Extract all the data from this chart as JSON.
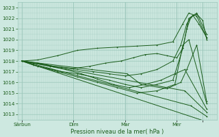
{
  "xlabel": "Pression niveau de la mer( hPa )",
  "ylim": [
    1012.5,
    1023.5
  ],
  "xlim": [
    0,
    100
  ],
  "yticks": [
    1013,
    1014,
    1015,
    1016,
    1017,
    1018,
    1019,
    1020,
    1021,
    1022,
    1023
  ],
  "xtick_positions": [
    2,
    28,
    54,
    80,
    93
  ],
  "xtick_labels": [
    "Sârbun",
    "Dim",
    "Mar",
    "Mer",
    ""
  ],
  "day_lines": [
    2,
    28,
    54,
    80,
    93
  ],
  "bg_color": "#cde8e0",
  "grid_color": "#9dc8bc",
  "line_color": "#1a5c1a",
  "lines": [
    {
      "x": [
        2,
        95
      ],
      "y": [
        1018.0,
        1012.3
      ]
    },
    {
      "x": [
        2,
        87,
        95
      ],
      "y": [
        1018.0,
        1013.8,
        1012.8
      ]
    },
    {
      "x": [
        2,
        84,
        95
      ],
      "y": [
        1018.0,
        1015.2,
        1013.2
      ]
    },
    {
      "x": [
        2,
        37,
        55,
        62,
        75,
        82,
        85,
        90,
        95
      ],
      "y": [
        1018.0,
        1017.2,
        1016.8,
        1015.8,
        1015.4,
        1016.0,
        1017.2,
        1019.5,
        1014.2
      ]
    },
    {
      "x": [
        2,
        10,
        18,
        28,
        36,
        44,
        52,
        58,
        64,
        70,
        75,
        80,
        83,
        85,
        87,
        90,
        93,
        95
      ],
      "y": [
        1018.0,
        1017.8,
        1017.5,
        1017.3,
        1017.5,
        1017.8,
        1018.0,
        1018.3,
        1018.6,
        1018.7,
        1018.5,
        1018.3,
        1019.2,
        1021.0,
        1022.1,
        1022.4,
        1021.8,
        1020.0
      ]
    },
    {
      "x": [
        2,
        8,
        15,
        22,
        30,
        38,
        46,
        54,
        62,
        70,
        78,
        82,
        85,
        88,
        91,
        95
      ],
      "y": [
        1018.0,
        1017.8,
        1017.6,
        1017.4,
        1017.2,
        1017.0,
        1016.8,
        1016.6,
        1016.8,
        1017.2,
        1018.0,
        1019.5,
        1021.5,
        1022.3,
        1021.5,
        1020.2
      ]
    },
    {
      "x": [
        2,
        8,
        15,
        22,
        30,
        38,
        46,
        54,
        62,
        70,
        78,
        83,
        86,
        90,
        95
      ],
      "y": [
        1018.0,
        1017.6,
        1017.3,
        1017.0,
        1016.8,
        1016.5,
        1016.2,
        1015.8,
        1015.5,
        1015.8,
        1016.2,
        1019.2,
        1022.0,
        1022.5,
        1020.5
      ]
    },
    {
      "x": [
        2,
        10,
        20,
        30,
        40,
        50,
        60,
        70,
        78,
        83,
        86,
        90,
        95
      ],
      "y": [
        1018.0,
        1018.1,
        1018.5,
        1019.0,
        1019.2,
        1019.3,
        1019.4,
        1019.5,
        1019.8,
        1021.5,
        1022.5,
        1022.2,
        1020.2
      ]
    },
    {
      "x": [
        2,
        8,
        16,
        24,
        32,
        40,
        48,
        56,
        64,
        72,
        79,
        84,
        95
      ],
      "y": [
        1018.0,
        1017.8,
        1017.5,
        1017.2,
        1016.8,
        1016.3,
        1015.8,
        1015.5,
        1015.8,
        1016.2,
        1016.8,
        1017.2,
        1013.5
      ]
    },
    {
      "x": [
        2,
        10,
        20,
        30,
        40,
        50,
        60,
        70,
        79,
        83,
        86,
        95
      ],
      "y": [
        1018.0,
        1017.5,
        1017.0,
        1016.5,
        1016.0,
        1015.5,
        1015.0,
        1015.2,
        1015.8,
        1019.5,
        1020.0,
        1014.0
      ]
    }
  ]
}
